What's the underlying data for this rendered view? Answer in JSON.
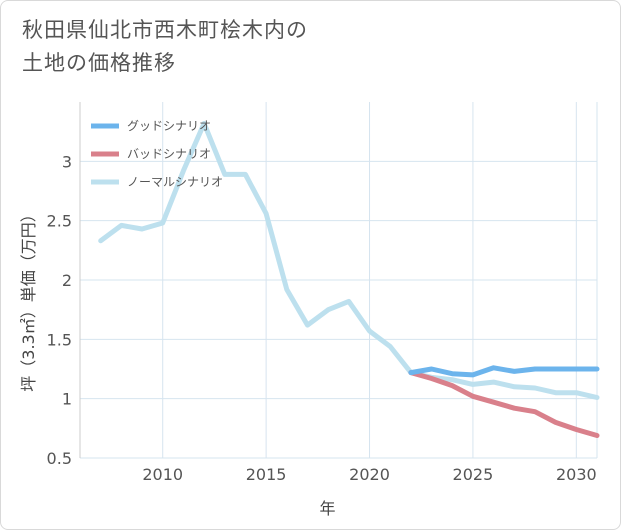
{
  "page": {
    "title_lines": [
      "秋田県仙北市西木町桧木内の",
      "土地の価格推移"
    ]
  },
  "chart_data": {
    "type": "line",
    "title": "秋田県仙北市西木町桧木内の土地の価格推移",
    "xlabel": "年",
    "ylabel": "坪（3.3㎡）単価（万円）",
    "xlim": [
      2006,
      2031
    ],
    "ylim": [
      0.5,
      3.5
    ],
    "xticks": [
      2010,
      2015,
      2020,
      2025,
      2030
    ],
    "yticks": [
      0.5,
      1,
      1.5,
      2,
      2.5,
      3
    ],
    "ytick_labels": [
      "0.5",
      "1",
      "1.5",
      "2",
      "2.5",
      "3"
    ],
    "grid": true,
    "legend_position": "top-left",
    "series": [
      {
        "name": "グッドシナリオ",
        "color": "#6cb4ec",
        "x": [
          2022,
          2023,
          2024,
          2025,
          2026,
          2027,
          2028,
          2029,
          2030,
          2031
        ],
        "y": [
          1.22,
          1.25,
          1.21,
          1.2,
          1.26,
          1.23,
          1.25,
          1.25,
          1.25,
          1.25
        ]
      },
      {
        "name": "バッドシナリオ",
        "color": "#d9808b",
        "x": [
          2022,
          2023,
          2024,
          2025,
          2026,
          2027,
          2028,
          2029,
          2030,
          2031
        ],
        "y": [
          1.22,
          1.17,
          1.11,
          1.02,
          0.97,
          0.92,
          0.89,
          0.8,
          0.74,
          0.69
        ]
      },
      {
        "name": "ノーマルシナリオ",
        "color": "#bde0ee",
        "x": [
          2007,
          2008,
          2009,
          2010,
          2011,
          2012,
          2013,
          2014,
          2015,
          2016,
          2017,
          2018,
          2019,
          2020,
          2021,
          2022,
          2023,
          2024,
          2025,
          2026,
          2027,
          2028,
          2029,
          2030,
          2031
        ],
        "y": [
          2.33,
          2.46,
          2.43,
          2.48,
          2.92,
          3.32,
          2.89,
          2.89,
          2.56,
          1.92,
          1.62,
          1.75,
          1.82,
          1.57,
          1.44,
          1.22,
          1.18,
          1.16,
          1.12,
          1.14,
          1.1,
          1.09,
          1.05,
          1.05,
          1.01
        ]
      }
    ]
  }
}
